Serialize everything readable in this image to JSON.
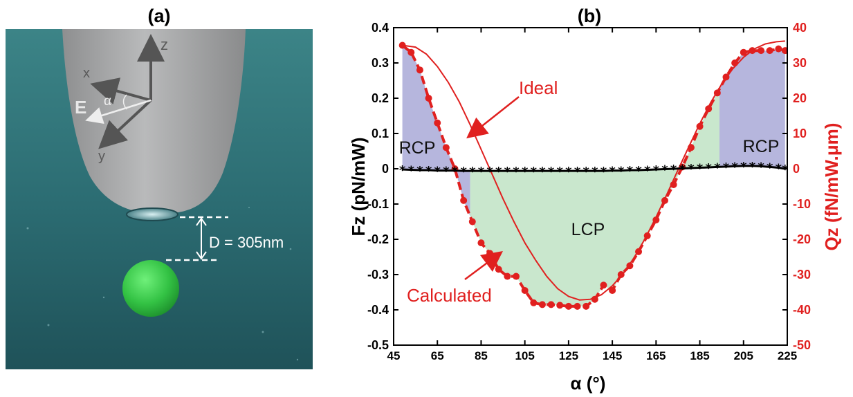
{
  "panel_a": {
    "label": "(a)",
    "axes": {
      "x": "x",
      "y": "y",
      "z": "z",
      "E": "E",
      "alpha": "α"
    },
    "distance_label": "D = 305nm",
    "colors": {
      "water": "#2f7479",
      "probe": "#a9aaab",
      "particle": "#3fcf4f"
    }
  },
  "colors": {
    "ideal": "#e0201f",
    "calculated": "#e0201f",
    "fz": "#000000",
    "rcp_fill": "#a9a9d7",
    "lcp_fill": "#bfe3c4"
  },
  "chart_data": {
    "type": "line",
    "title": "(b)",
    "xlabel": "α (°)",
    "ylabel_left": "Fz (pN/mW)",
    "ylabel_right": "Qz (fN/mW.μm)",
    "xlim": [
      45,
      225
    ],
    "ylim_left": [
      -0.5,
      0.4
    ],
    "ylim_right": [
      -50,
      40
    ],
    "x_ticks": [
      45,
      65,
      85,
      105,
      125,
      145,
      165,
      185,
      205,
      225
    ],
    "y_left_ticks": [
      "-0.5",
      "-0.4",
      "-0.3",
      "-0.2",
      "-0.1",
      "0",
      "0.1",
      "0.2",
      "0.3",
      "0.4"
    ],
    "y_right_ticks": [
      "-50",
      "-40",
      "-30",
      "-20",
      "-10",
      "0",
      "10",
      "20",
      "30",
      "40"
    ],
    "grid": false,
    "annotations": {
      "ideal": "Ideal",
      "calculated": "Calculated"
    },
    "regions": [
      {
        "label": "RCP",
        "x_range": [
          49,
          80
        ]
      },
      {
        "label": "LCP",
        "x_range": [
          80,
          194
        ]
      },
      {
        "label": "RCP",
        "x_range": [
          194,
          224
        ]
      }
    ],
    "series": [
      {
        "name": "Ideal",
        "axis": "left",
        "style": "solid",
        "x": [
          49,
          55,
          60,
          65,
          70,
          75,
          80,
          85,
          90,
          95,
          100,
          105,
          110,
          115,
          120,
          125,
          130,
          135,
          140,
          145,
          150,
          155,
          160,
          165,
          170,
          175,
          180,
          185,
          190,
          195,
          200,
          205,
          210,
          215,
          220,
          224
        ],
        "y": [
          0.35,
          0.345,
          0.325,
          0.29,
          0.245,
          0.19,
          0.125,
          0.055,
          -0.015,
          -0.085,
          -0.15,
          -0.21,
          -0.26,
          -0.305,
          -0.34,
          -0.362,
          -0.372,
          -0.37,
          -0.357,
          -0.332,
          -0.297,
          -0.252,
          -0.198,
          -0.137,
          -0.072,
          -0.004,
          0.063,
          0.128,
          0.188,
          0.24,
          0.283,
          0.316,
          0.34,
          0.354,
          0.36,
          0.362
        ]
      },
      {
        "name": "Calculated",
        "axis": "left",
        "style": "dashed-markers",
        "x": [
          49,
          53,
          57,
          61,
          65,
          69,
          73,
          77,
          81,
          85,
          89,
          93,
          97,
          101,
          105,
          109,
          113,
          117,
          121,
          125,
          129,
          133,
          137,
          141,
          145,
          149,
          153,
          157,
          161,
          165,
          169,
          173,
          177,
          181,
          185,
          189,
          193,
          197,
          201,
          205,
          209,
          213,
          217,
          221,
          224
        ],
        "y": [
          0.35,
          0.33,
          0.28,
          0.2,
          0.13,
          0.06,
          0.0,
          -0.09,
          -0.15,
          -0.21,
          -0.24,
          -0.285,
          -0.305,
          -0.305,
          -0.345,
          -0.38,
          -0.385,
          -0.385,
          -0.387,
          -0.39,
          -0.39,
          -0.39,
          -0.37,
          -0.33,
          -0.345,
          -0.3,
          -0.275,
          -0.235,
          -0.19,
          -0.145,
          -0.09,
          -0.045,
          0.005,
          0.06,
          0.12,
          0.17,
          0.215,
          0.26,
          0.3,
          0.33,
          0.335,
          0.335,
          0.335,
          0.34,
          0.335
        ]
      },
      {
        "name": "Fz",
        "axis": "left",
        "style": "solid-star-markers",
        "x": [
          49,
          53,
          57,
          61,
          65,
          69,
          73,
          77,
          81,
          85,
          89,
          93,
          97,
          101,
          105,
          109,
          113,
          117,
          121,
          125,
          129,
          133,
          137,
          141,
          145,
          149,
          153,
          157,
          161,
          165,
          169,
          173,
          177,
          181,
          185,
          189,
          193,
          197,
          201,
          205,
          209,
          213,
          217,
          221,
          224
        ],
        "y": [
          -0.002,
          -0.003,
          -0.004,
          -0.004,
          -0.005,
          -0.005,
          -0.005,
          -0.006,
          -0.006,
          -0.006,
          -0.006,
          -0.006,
          -0.006,
          -0.006,
          -0.006,
          -0.006,
          -0.006,
          -0.006,
          -0.006,
          -0.006,
          -0.006,
          -0.006,
          -0.006,
          -0.006,
          -0.005,
          -0.005,
          -0.004,
          -0.004,
          -0.003,
          -0.002,
          -0.001,
          0.0,
          0.001,
          0.002,
          0.003,
          0.004,
          0.005,
          0.006,
          0.007,
          0.008,
          0.008,
          0.007,
          0.005,
          0.003,
          0.0
        ]
      }
    ]
  }
}
